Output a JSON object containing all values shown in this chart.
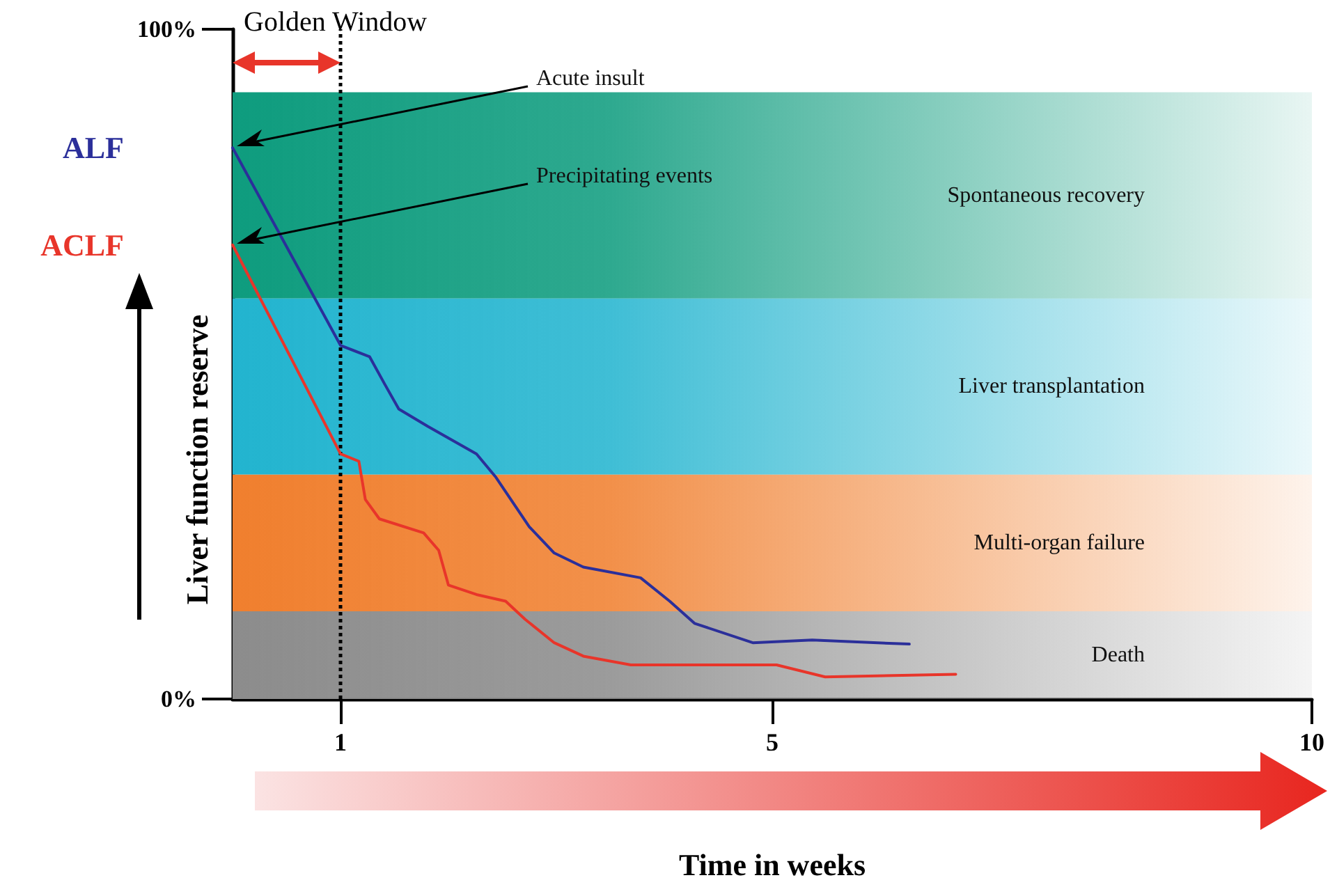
{
  "chart_data": {
    "type": "line",
    "xlabel": "Time in weeks",
    "ylabel": "Liver function reserve",
    "xlim": [
      0,
      10
    ],
    "ylim": [
      0,
      100
    ],
    "xticks": [
      1,
      5,
      10
    ],
    "yticks": [
      {
        "value": 0,
        "label": "0%"
      },
      {
        "value": 100,
        "label": "100%"
      }
    ],
    "grid": false,
    "legend": false,
    "marker": "none",
    "line_style": "solid",
    "series": [
      {
        "name": "ALF",
        "color": "#2b2f9a",
        "x": [
          0,
          1,
          1.27,
          1.41,
          1.54,
          1.81,
          2.26,
          2.44,
          2.75,
          2.98,
          3.25,
          3.78,
          4.05,
          4.28,
          4.82,
          5.37,
          6.27
        ],
        "values": [
          82.3,
          52.8,
          51.1,
          47.0,
          43.3,
          40.7,
          36.6,
          33.1,
          25.7,
          21.8,
          19.7,
          18.1,
          14.6,
          11.3,
          8.4,
          8.8,
          8.2
        ]
      },
      {
        "name": "ACLF",
        "color": "#e8352a",
        "x": [
          0,
          1,
          1.17,
          1.23,
          1.36,
          1.77,
          1.91,
          2.0,
          2.26,
          2.53,
          2.71,
          2.98,
          3.25,
          3.69,
          5.04,
          5.49,
          6.7
        ],
        "values": [
          67.8,
          36.6,
          35.5,
          29.8,
          26.9,
          24.8,
          22.2,
          17.0,
          15.6,
          14.6,
          11.9,
          8.4,
          6.4,
          5.1,
          5.1,
          3.3,
          3.7
        ]
      }
    ],
    "bands": [
      {
        "axis": "y",
        "from": 59.8,
        "to": 90.6,
        "label": "Spontaneous recovery",
        "color": "#0e9c7e"
      },
      {
        "axis": "y",
        "from": 33.5,
        "to": 59.8,
        "label": "Liver transplantation",
        "color": "#22b4cf"
      },
      {
        "axis": "y",
        "from": 13.1,
        "to": 33.5,
        "label": "Multi-organ failure",
        "color": "#f07f2e"
      },
      {
        "axis": "y",
        "from": 0,
        "to": 13.1,
        "label": "Death",
        "color": "#8c8c8c"
      }
    ],
    "ref_lines": [
      {
        "axis": "x",
        "value": 1,
        "label": null,
        "color": "#000000",
        "line_style": "dotted"
      }
    ],
    "annotations": [
      "Golden Window",
      "Acute insult",
      "Precipitating events"
    ]
  }
}
